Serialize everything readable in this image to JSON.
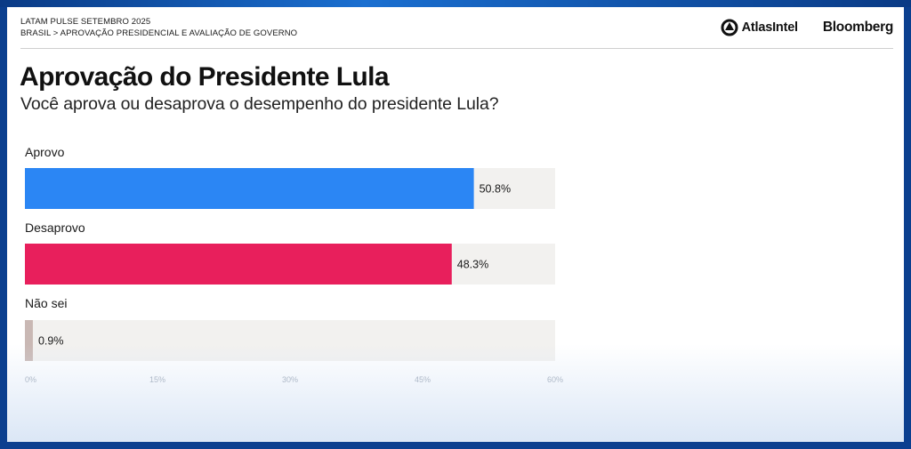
{
  "header": {
    "survey": "LATAM PULSE SETEMBRO 2025",
    "breadcrumb": "BRASIL > APROVAÇÃO PRESIDENCIAL E AVALIAÇÃO DE GOVERNO",
    "brand_left": "AtlasIntel",
    "brand_right": "Bloomberg"
  },
  "chart_data": {
    "type": "bar",
    "orientation": "horizontal",
    "title": "Aprovação do Presidente Lula",
    "subtitle": "Você aprova ou desaprova o desempenho do presidente Lula?",
    "categories": [
      "Aprovo",
      "Desaprovo",
      "Não sei"
    ],
    "values": [
      50.8,
      48.3,
      0.9
    ],
    "value_labels": [
      "50.8%",
      "48.3%",
      "0.9%"
    ],
    "colors": [
      "#2B86F4",
      "#E81F5C",
      "#C9B8B4"
    ],
    "track_color": "#F2F1EF",
    "xlim": [
      0,
      60
    ],
    "xticks": [
      0,
      15,
      30,
      45,
      60
    ],
    "xtick_labels": [
      "0%",
      "15%",
      "30%",
      "45%",
      "60%"
    ],
    "xlabel": "",
    "ylabel": "",
    "grid": false,
    "legend": "none"
  }
}
